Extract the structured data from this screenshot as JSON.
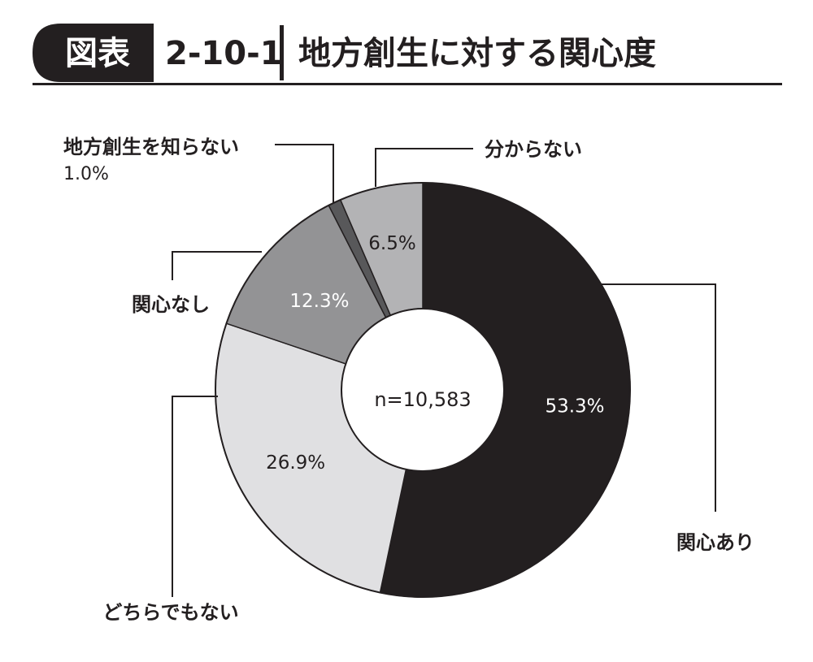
{
  "header": {
    "badge": "図表",
    "number": "2-10-1",
    "title": "地方創生に対する関心度"
  },
  "chart_data": {
    "type": "pie",
    "subtype": "donut",
    "center_label": "n=10,583",
    "slices": [
      {
        "label": "関心あり",
        "value": 53.3,
        "value_label": "53.3%",
        "color": "#231f20",
        "text_color": "#ffffff"
      },
      {
        "label": "どちらでもない",
        "value": 26.9,
        "value_label": "26.9%",
        "color": "#e0e0e2",
        "text_color": "#231f20"
      },
      {
        "label": "関心なし",
        "value": 12.3,
        "value_label": "12.3%",
        "color": "#939395",
        "text_color": "#ffffff"
      },
      {
        "label": "地方創生を知らない",
        "value": 1.0,
        "value_label": "1.0%",
        "color": "#58585a",
        "text_color": "#231f20"
      },
      {
        "label": "分からない",
        "value": 6.5,
        "value_label": "6.5%",
        "color": "#b3b3b5",
        "text_color": "#231f20"
      }
    ]
  }
}
